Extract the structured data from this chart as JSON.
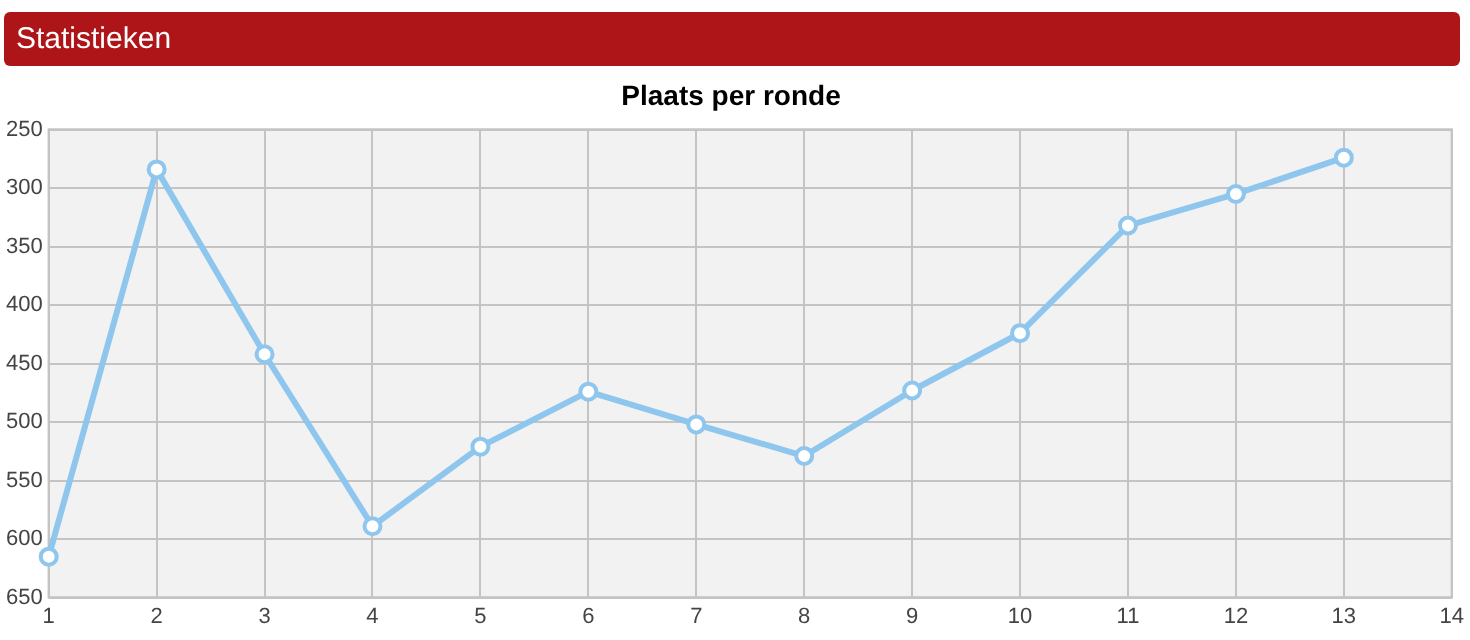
{
  "chart_data": {
    "type": "line",
    "title": "Plaats per ronde",
    "annotations": [
      "Statistieken"
    ],
    "x": [
      1,
      2,
      3,
      4,
      5,
      6,
      7,
      8,
      9,
      10,
      11,
      12,
      13
    ],
    "series": [
      {
        "color": "#8ec6ee",
        "values": [
          615,
          284,
          442,
          589,
          521,
          474,
          502,
          529,
          473,
          424,
          332,
          305,
          274
        ]
      }
    ],
    "xlim": [
      1,
      14
    ],
    "xticks": [
      1,
      2,
      3,
      4,
      5,
      6,
      7,
      8,
      9,
      10,
      11,
      12,
      13,
      14
    ],
    "ylim": [
      650,
      250
    ],
    "yticks": [
      250,
      300,
      350,
      400,
      450,
      500,
      550,
      600,
      650
    ],
    "grid": true,
    "legend": false,
    "marker": "circle",
    "line_style": "solid"
  }
}
